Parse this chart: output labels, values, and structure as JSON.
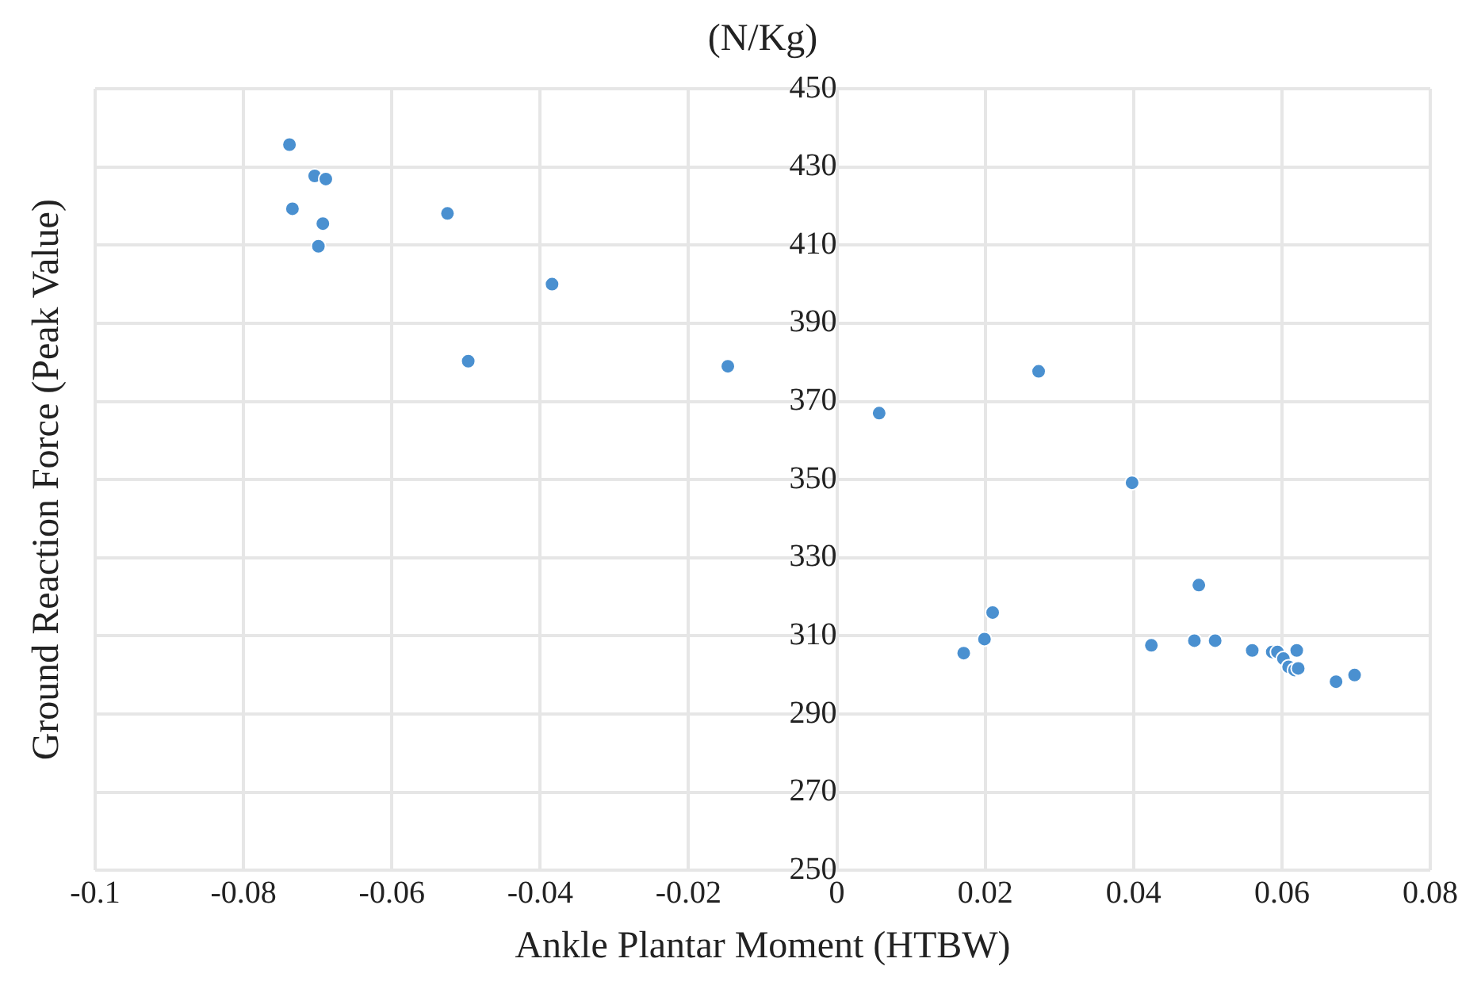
{
  "chart_data": {
    "type": "scatter",
    "title": "(N/Kg)",
    "xlabel": "Ankle Plantar Moment (HTBW)",
    "ylabel": "Ground Reaction Force (Peak Value)",
    "x": [
      -0.0738,
      -0.0734,
      -0.0704,
      -0.0689,
      -0.0693,
      -0.0699,
      -0.0525,
      -0.0497,
      -0.0384,
      -0.0147,
      0.0057,
      0.0171,
      0.0199,
      0.021,
      0.0272,
      0.0398,
      0.0424,
      0.0482,
      0.0488,
      0.051,
      0.056,
      0.0587,
      0.0594,
      0.0602,
      0.0609,
      0.0617,
      0.0622,
      0.062,
      0.0673,
      0.0698
    ],
    "series": [
      {
        "color": "#4a90d0",
        "values": [
          435.7,
          419.3,
          427.7,
          426.9,
          415.5,
          409.7,
          418.1,
          380.3,
          400,
          379,
          367,
          305.6,
          309.2,
          316,
          377.7,
          349.2,
          307.6,
          308.8,
          323,
          308.8,
          306.3,
          305.9,
          305.9,
          304.2,
          302.1,
          301.3,
          301.7,
          306.3,
          298.3,
          300
        ]
      }
    ],
    "xlim": [
      -0.1,
      0.08
    ],
    "xticks": [
      -0.1,
      -0.08,
      -0.06,
      -0.04,
      -0.02,
      0,
      0.02,
      0.04,
      0.06,
      0.08
    ],
    "ylim": [
      250,
      450
    ],
    "yticks": [
      250,
      270,
      290,
      310,
      330,
      350,
      370,
      390,
      410,
      430,
      450
    ],
    "grid": true,
    "marker": "circle",
    "legend": false
  }
}
